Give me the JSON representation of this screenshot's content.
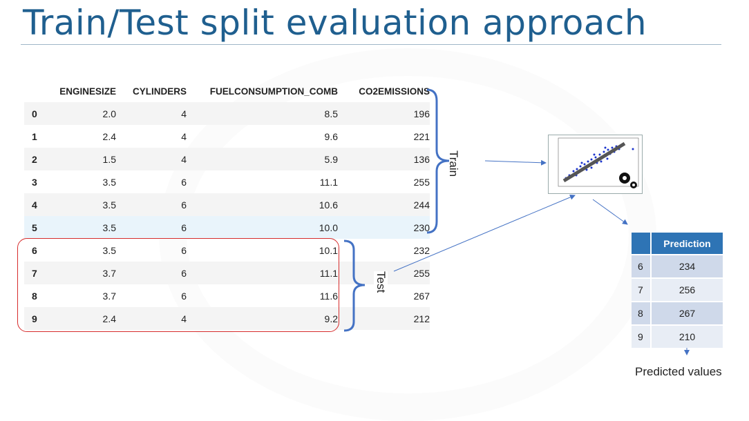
{
  "slide": {
    "title": "Train/Test split evaluation approach"
  },
  "dataset": {
    "columns": [
      "",
      "ENGINESIZE",
      "CYLINDERS",
      "FUELCONSUMPTION_COMB",
      "CO2EMISSIONS"
    ],
    "rows": [
      [
        "0",
        "2.0",
        "4",
        "8.5",
        "196"
      ],
      [
        "1",
        "2.4",
        "4",
        "9.6",
        "221"
      ],
      [
        "2",
        "1.5",
        "4",
        "5.9",
        "136"
      ],
      [
        "3",
        "3.5",
        "6",
        "11.1",
        "255"
      ],
      [
        "4",
        "3.5",
        "6",
        "10.6",
        "244"
      ],
      [
        "5",
        "3.5",
        "6",
        "10.0",
        "230"
      ],
      [
        "6",
        "3.5",
        "6",
        "10.1",
        "232"
      ],
      [
        "7",
        "3.7",
        "6",
        "11.1",
        "255"
      ],
      [
        "8",
        "3.7",
        "6",
        "11.6",
        "267"
      ],
      [
        "9",
        "2.4",
        "4",
        "9.2",
        "212"
      ]
    ]
  },
  "labels": {
    "train": "Train",
    "test": "Test"
  },
  "prediction_table": {
    "header": "Prediction",
    "rows": [
      [
        "6",
        "234"
      ],
      [
        "7",
        "256"
      ],
      [
        "8",
        "267"
      ],
      [
        "9",
        "210"
      ]
    ]
  },
  "caption": "Predicted values",
  "colors": {
    "title": "#1f5f8f",
    "bracket": "#4472c4",
    "test_box": "#d62b2b",
    "prediction_header": "#2e74b5"
  }
}
